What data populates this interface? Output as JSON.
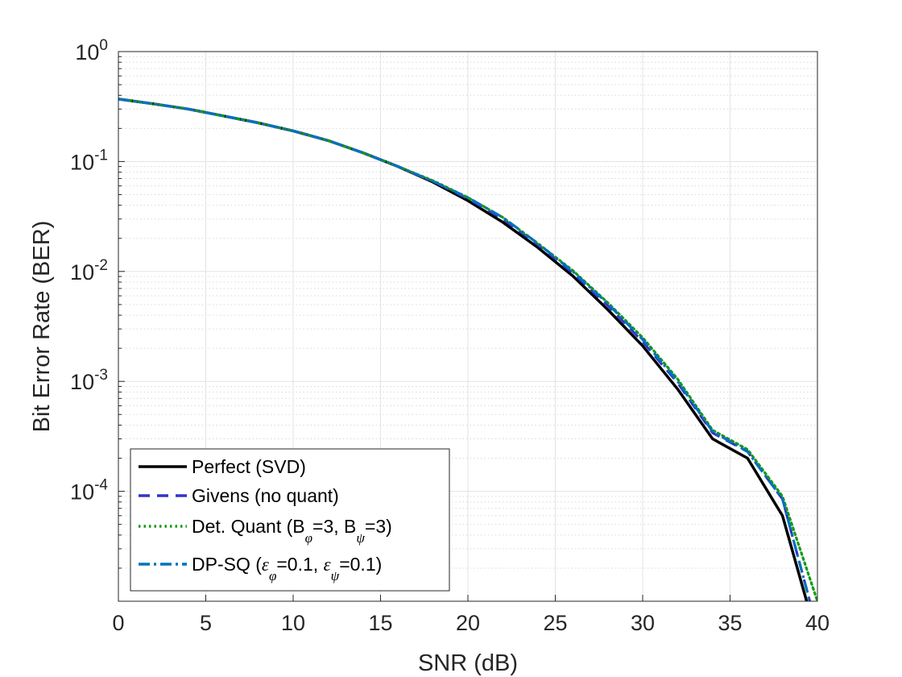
{
  "chart_data": {
    "type": "line",
    "title": "",
    "xlabel": "SNR (dB)",
    "ylabel": "Bit Error Rate (BER)",
    "xlim": [
      0,
      40
    ],
    "ylim": [
      1e-05,
      1
    ],
    "yscale": "log",
    "grid": true,
    "minor_grid": true,
    "legend_position": "bottom-left",
    "x_ticks": [
      0,
      5,
      10,
      15,
      20,
      25,
      30,
      35,
      40
    ],
    "x_tick_labels": [
      "0",
      "5",
      "10",
      "15",
      "20",
      "25",
      "30",
      "35",
      "40"
    ],
    "y_ticks": [
      1,
      0.1,
      0.01,
      0.001,
      0.0001
    ],
    "y_tick_labels": [
      {
        "base": "10",
        "exp": "0"
      },
      {
        "base": "10",
        "exp": "-1"
      },
      {
        "base": "10",
        "exp": "-2"
      },
      {
        "base": "10",
        "exp": "-3"
      },
      {
        "base": "10",
        "exp": "-4"
      }
    ],
    "x": [
      0,
      2,
      4,
      6,
      8,
      10,
      12,
      14,
      16,
      18,
      20,
      22,
      24,
      26,
      28,
      30,
      32,
      34,
      36,
      38,
      40
    ],
    "series": [
      {
        "name": "Perfect (SVD)",
        "legend": {
          "text": "Perfect (SVD)"
        },
        "color": "#000000",
        "dash": "solid",
        "values": [
          0.37,
          0.335,
          0.3,
          0.26,
          0.225,
          0.19,
          0.155,
          0.12,
          0.09,
          0.065,
          0.044,
          0.028,
          0.0165,
          0.0091,
          0.0045,
          0.0021,
          0.00085,
          0.0003,
          0.0002,
          6e-05,
          4.5e-06
        ]
      },
      {
        "name": "Givens (no quant)",
        "legend": {
          "text": "Givens (no quant)"
        },
        "color": "#3333cc",
        "dash": "dashed",
        "values": [
          0.37,
          0.335,
          0.3,
          0.26,
          0.225,
          0.19,
          0.155,
          0.12,
          0.09,
          0.066,
          0.046,
          0.03,
          0.0175,
          0.0097,
          0.0049,
          0.0023,
          0.00097,
          0.00034,
          0.00023,
          8.5e-05,
          5.5e-06
        ]
      },
      {
        "name": "Det. Quant (Bφ=3, Bψ=3)",
        "legend": {
          "parts": [
            {
              "t": "Det. Quant (B"
            },
            {
              "t": "φ",
              "sub": true
            },
            {
              "t": "=3, B"
            },
            {
              "t": "ψ",
              "sub": true
            },
            {
              "t": "=3)"
            }
          ]
        },
        "color": "#159a15",
        "dash": "dotted",
        "values": [
          0.37,
          0.335,
          0.3,
          0.26,
          0.225,
          0.19,
          0.155,
          0.12,
          0.09,
          0.067,
          0.047,
          0.031,
          0.018,
          0.0102,
          0.0052,
          0.0025,
          0.00105,
          0.00036,
          0.00024,
          9e-05,
          1e-05
        ]
      },
      {
        "name": "DP-SQ (εφ=0.1, εψ=0.1)",
        "legend": {
          "parts": [
            {
              "t": "DP-SQ ("
            },
            {
              "t": "ε",
              "greek": true
            },
            {
              "t": "φ",
              "sub": true
            },
            {
              "t": "=0.1, "
            },
            {
              "t": "ε",
              "greek": true
            },
            {
              "t": "ψ",
              "sub": true
            },
            {
              "t": "=0.1)"
            }
          ]
        },
        "color": "#0072bd",
        "dash": "dashdot",
        "values": [
          0.37,
          0.335,
          0.3,
          0.26,
          0.225,
          0.19,
          0.155,
          0.12,
          0.09,
          0.066,
          0.047,
          0.031,
          0.018,
          0.01,
          0.0051,
          0.0024,
          0.001,
          0.00035,
          0.00023,
          8.5e-05,
          5.5e-06
        ]
      }
    ]
  }
}
